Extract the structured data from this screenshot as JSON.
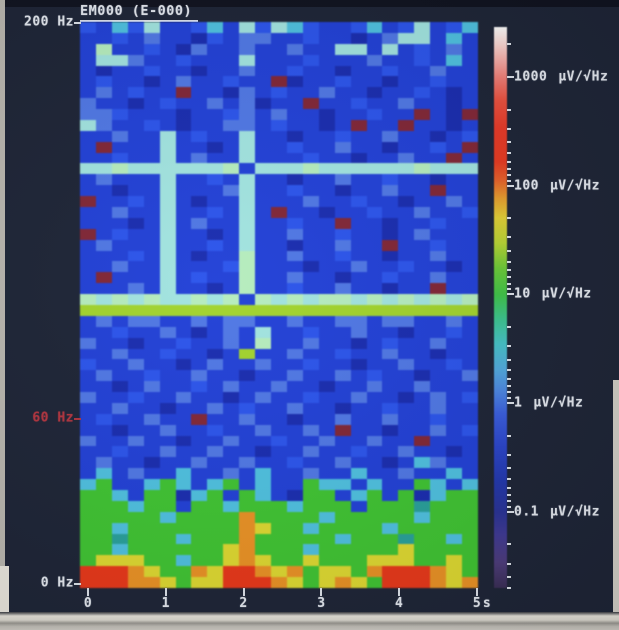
{
  "chart_data": {
    "type": "heatmap",
    "title": "EM000 (E-000)",
    "x": {
      "unit": "s",
      "ticks": [
        "0",
        "1",
        "2",
        "3",
        "4",
        "5"
      ],
      "range_s": [
        0,
        5
      ]
    },
    "y": {
      "unit": "Hz",
      "range_hz": [
        0,
        200
      ],
      "labeled_ticks": [
        {
          "text": "200 Hz",
          "hz": 200,
          "color": "#e4e8ef"
        },
        {
          "text": "60 Hz",
          "hz": 60,
          "color": "#b23540"
        },
        {
          "text": "0 Hz",
          "hz": 0,
          "color": "#e4e8ef"
        }
      ]
    },
    "colorbar": {
      "scale": "log",
      "unit": "µV/√Hz",
      "ticks": [
        "1000",
        "100",
        "10",
        "1",
        "0.1"
      ],
      "gradient": [
        [
          0.0,
          "#fdfdfd"
        ],
        [
          0.03,
          "#fad8d4"
        ],
        [
          0.062,
          "#f6a9a4"
        ],
        [
          0.09,
          "#f07f78"
        ],
        [
          0.13,
          "#ec5240"
        ],
        [
          0.18,
          "#e73a28"
        ],
        [
          0.24,
          "#e63a22"
        ],
        [
          0.272,
          "#e7602a"
        ],
        [
          0.305,
          "#e79e2e"
        ],
        [
          0.34,
          "#e2cf36"
        ],
        [
          0.385,
          "#b8d434"
        ],
        [
          0.43,
          "#6cca38"
        ],
        [
          0.477,
          "#3fc348"
        ],
        [
          0.52,
          "#3cc48e"
        ],
        [
          0.565,
          "#46c2c8"
        ],
        [
          0.61,
          "#52aade"
        ],
        [
          0.65,
          "#4c86e2"
        ],
        [
          0.69,
          "#3a5ede"
        ],
        [
          0.745,
          "#2c46cc"
        ],
        [
          0.81,
          "#2338ae"
        ],
        [
          0.865,
          "#2a3396"
        ],
        [
          0.905,
          "#403a95"
        ],
        [
          0.955,
          "#4e3d7c"
        ],
        [
          1.0,
          "#3a2e56"
        ]
      ]
    },
    "heatmap": {
      "cols": 25,
      "rows": 52,
      "palette": {
        "a": "#1c2da8",
        "b": "#2441cd",
        "c": "#2f55e2",
        "d": "#5378de",
        "e": "#55c0dd",
        "f": "#a5e3df",
        "g": "#b9ecc0",
        "h": "#a4d337",
        "i": "#46c13a",
        "j": "#ddd83b",
        "k": "#e5932d",
        "l": "#df3a1e",
        "m": "#7c2837",
        "n": "#2f9f9a"
      },
      "cells": [
        "cbecfbbcebfcfecbbcebcfbce",
        "bbcbdbbacbddbbcbbabdffbeb",
        "bgbbcbadbbdbbdbbffbfbcbdb",
        "bffdbbcbbbfbbbcbbbdbbcbeb",
        "babbcbbabbdbbcbbabbcbbdbb",
        "bcbbabdbbcbbmabbcbbabbcbb",
        "bdbcbbmbbadbcbbdbbabbcbab",
        "dbbabcbbdbdabbmbbcbbdbbab",
        "ddcbbbabbcdbdbbabbcbbmbam",
        "fdbbcbabbddbcbbabmbbmbbab",
        "bbdbbfbcbbfbbabbcbbdbbabc",
        "bmbbbfbbabfbbcbbdbbabbcbm",
        "bbcbbfbdbbfbbbcbbabbdbbmb",
        "ffgffffffgbfffgffffffgfff",
        "bdbbbfbbcbfbbabbdbbcbbabb",
        "bbabbfbbbdfbbcbbabbdbbmbb",
        "mbbcbfbabbfbbbdbbcbbabbdb",
        "bbdbbfbbcbfbmbbabbcbbdbbc",
        "bbbabfbdbbfbbcbbmbbabbcbb",
        "mbcbbfbbabfbbdbbcbbabdbbb",
        "bdbbbfbbcbfbbabbdbbmbbcbb",
        "bbbcbfbabbgbbdbbcbbabbdbb",
        "bbdbbfbbbcgbbbabbdbbcbbab",
        "bmbbbfbcbbgbbdbbabbcbbdbb",
        "bbbdbfbbabgbbcbbdbbabbmbb",
        "gfgfgffgfgbgfgfggfgfgfgfg",
        "hhhhhhhhhhhhhhhhhhhhhhhhh",
        "bdbddbbdbddbbdbbddbddbbdb",
        "bbcbbdbabdbfbbcbbdbbabbcb",
        "dbbabbcbbdbgbbdbbabcbbdbb",
        "bbdbbcbbabhbbdbbcbbdbbabb",
        "cbbdbbabdbbdbbcbbabbdbbcb",
        "bdbbcbbdbbabbdbbdbcbbabbd",
        "bbabdbbcbdbbdbbabbdbbdbbb",
        "dbbcbbdbbabdbbcbbdbbabdbc",
        "bbdbbabbdbcbbdbbabbcbbdbb",
        "bcbbdbbmbbdbbabbdbbdbbcbb",
        "bbabbdbbcbbdbbdbmbbabbdbc",
        "dbbdbbabbdbbcbbdbbdbbmbbb",
        "bbcbbdbbdbbabbdbbcbbdbbab",
        "bdbbabbdbbdbbcbbdbbabedbb",
        "bebdbbebbdbebbdbbebbdbbeb",
        "eibbeiebeibebbieebebbiebe",
        "iiebiiaeibiebaiibeibiaeii",
        "iiieiibiieiiieiiibiiiniii",
        "iiiiieiiiikiiiieiiiiieiii",
        "iieiiiiiiikjiieiiiieiiiii",
        "iiniiieiiikiiiiieiiiniiei",
        "iieiiiiiijkiiieiiiiijiiii",
        "ijjjiieiijkjiijiiijjjiiji",
        "lllkjiikjllkjkijjiklllkji",
        "lllkkjijjlllkjijkjilllkjk"
      ]
    }
  }
}
